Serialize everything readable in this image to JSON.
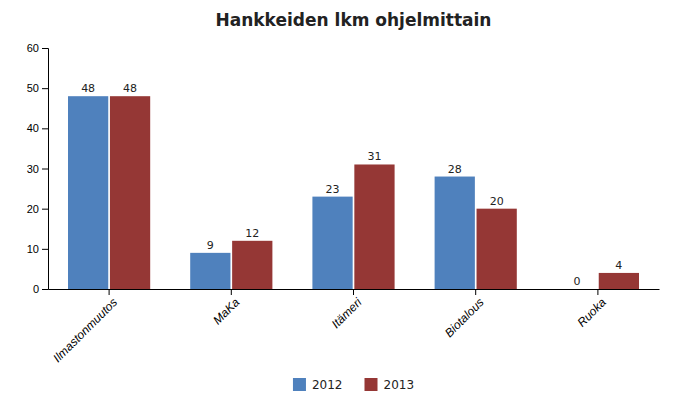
{
  "chart_data": {
    "type": "bar",
    "title": "Hankkeiden lkm ohjelmittain",
    "categories": [
      "Ilmastonmuutos",
      "MaKa",
      "Itämeri",
      "Biotalous",
      "Ruoka"
    ],
    "series": [
      {
        "name": "2012",
        "color": "#4F81BD",
        "values": [
          48,
          9,
          23,
          28,
          0
        ]
      },
      {
        "name": "2013",
        "color": "#953735",
        "values": [
          48,
          12,
          31,
          20,
          4
        ]
      }
    ],
    "ylim": [
      0,
      60
    ],
    "yticks": [
      0,
      10,
      20,
      30,
      40,
      50,
      60
    ],
    "data_labels": true,
    "legend": "bottom",
    "grid": false
  }
}
